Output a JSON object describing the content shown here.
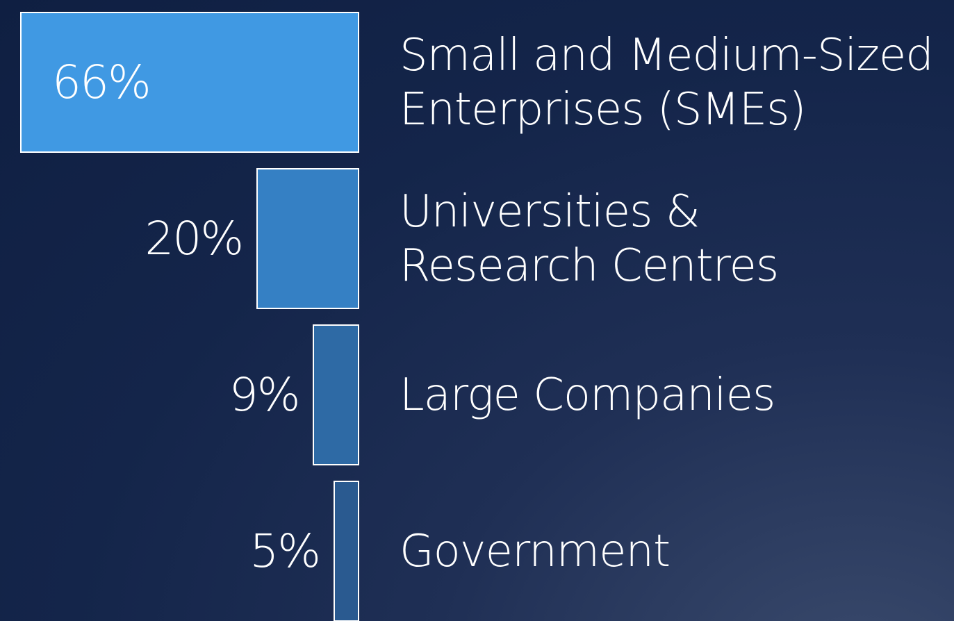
{
  "chart_data": {
    "type": "bar",
    "orientation": "horizontal",
    "categories": [
      "Small and Medium-Sized\nEnterprises (SMEs)",
      "Universities &\nResearch Centres",
      "Large Companies",
      "Government"
    ],
    "values": [
      66,
      20,
      9,
      5
    ],
    "value_labels": [
      "66%",
      "20%",
      "9%",
      "5%"
    ],
    "colors": [
      "#4099e3",
      "#3580c4",
      "#2e6aa5",
      "#2a5a90"
    ]
  }
}
